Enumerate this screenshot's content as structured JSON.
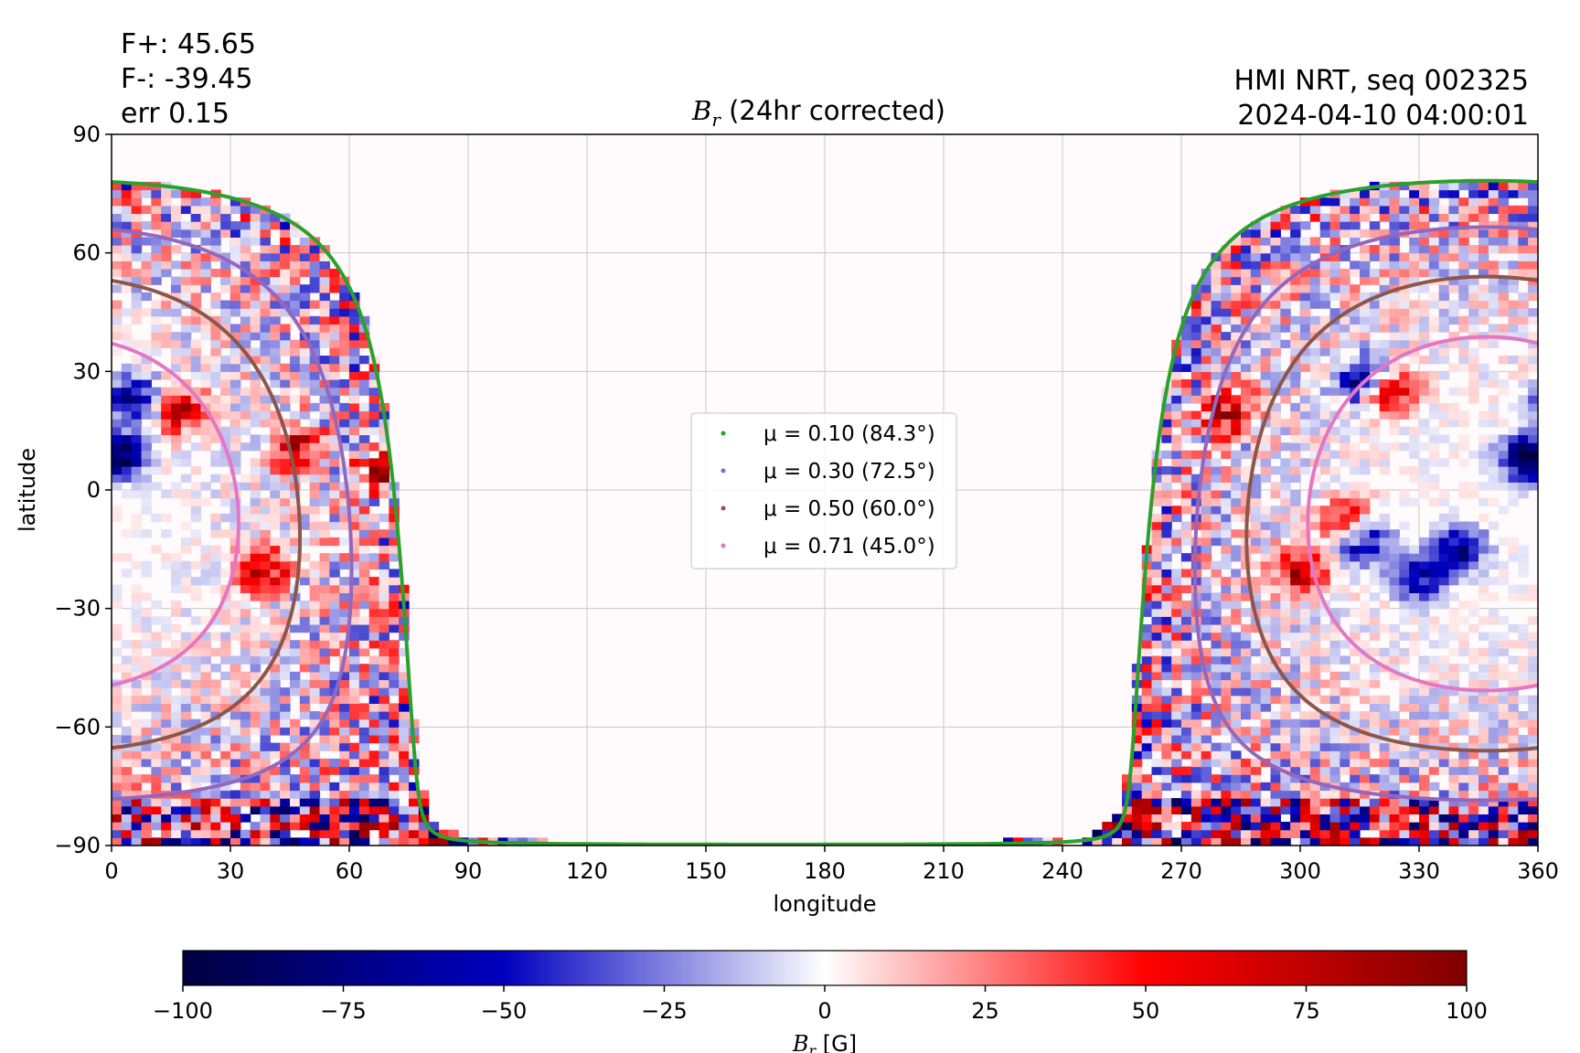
{
  "header": {
    "flux_pos": "F+: 45.65",
    "flux_neg": "F-: -39.45",
    "error": "err 0.15",
    "source": "HMI NRT, seq 002325",
    "timestamp": "2024-04-10 04:00:01",
    "title_symbol": "B",
    "title_sub": "r",
    "title_rest": " (24hr corrected)"
  },
  "chart_data": {
    "type": "heatmap",
    "title": "B_r (24hr corrected)",
    "xlabel": "longitude",
    "ylabel": "latitude",
    "xlim": [
      0,
      360
    ],
    "ylim": [
      -90,
      90
    ],
    "xticks": [
      0,
      30,
      60,
      90,
      120,
      150,
      180,
      210,
      240,
      270,
      300,
      330,
      360
    ],
    "yticks": [
      -90,
      -60,
      -30,
      0,
      30,
      60,
      90
    ],
    "grid": true,
    "colormap": "seismic",
    "colorbar": {
      "label": "B_r [G]",
      "range": [
        -100,
        100
      ],
      "ticks": [
        -100,
        -75,
        -50,
        -25,
        0,
        25,
        50,
        75,
        100
      ]
    },
    "legend": {
      "placement": "center",
      "entries": [
        {
          "label": "μ = 0.10 (84.3°)",
          "mu": 0.1,
          "angle_deg": 84.3,
          "color": "#2ca02c"
        },
        {
          "label": "μ = 0.30 (72.5°)",
          "mu": 0.3,
          "angle_deg": 72.5,
          "color": "#9467bd"
        },
        {
          "label": "μ = 0.50 (60.0°)",
          "mu": 0.5,
          "angle_deg": 60.0,
          "color": "#8c564b"
        },
        {
          "label": "μ = 0.71 (45.0°)",
          "mu": 0.71,
          "angle_deg": 45.0,
          "color": "#e377c2"
        }
      ]
    },
    "disk_center": {
      "lon": 347,
      "lat": -6
    },
    "active_regions": [
      {
        "lon": 5,
        "lat": 23,
        "polarity": "negative"
      },
      {
        "lon": 18,
        "lat": 20,
        "polarity": "positive"
      },
      {
        "lon": 3,
        "lat": 9,
        "polarity": "negative"
      },
      {
        "lon": 38,
        "lat": -20,
        "polarity": "positive"
      },
      {
        "lon": 47,
        "lat": 10,
        "polarity": "positive"
      },
      {
        "lon": 69,
        "lat": 5,
        "polarity": "positive"
      },
      {
        "lon": 282,
        "lat": 20,
        "polarity": "positive"
      },
      {
        "lon": 316,
        "lat": 28,
        "polarity": "negative"
      },
      {
        "lon": 323,
        "lat": 25,
        "polarity": "positive"
      },
      {
        "lon": 312,
        "lat": -8,
        "polarity": "positive"
      },
      {
        "lon": 316,
        "lat": -13,
        "polarity": "negative"
      },
      {
        "lon": 300,
        "lat": -20,
        "polarity": "positive"
      },
      {
        "lon": 356,
        "lat": 8,
        "polarity": "negative"
      },
      {
        "lon": 330,
        "lat": -22,
        "polarity": "negative"
      },
      {
        "lon": 340,
        "lat": -15,
        "polarity": "negative"
      }
    ]
  }
}
